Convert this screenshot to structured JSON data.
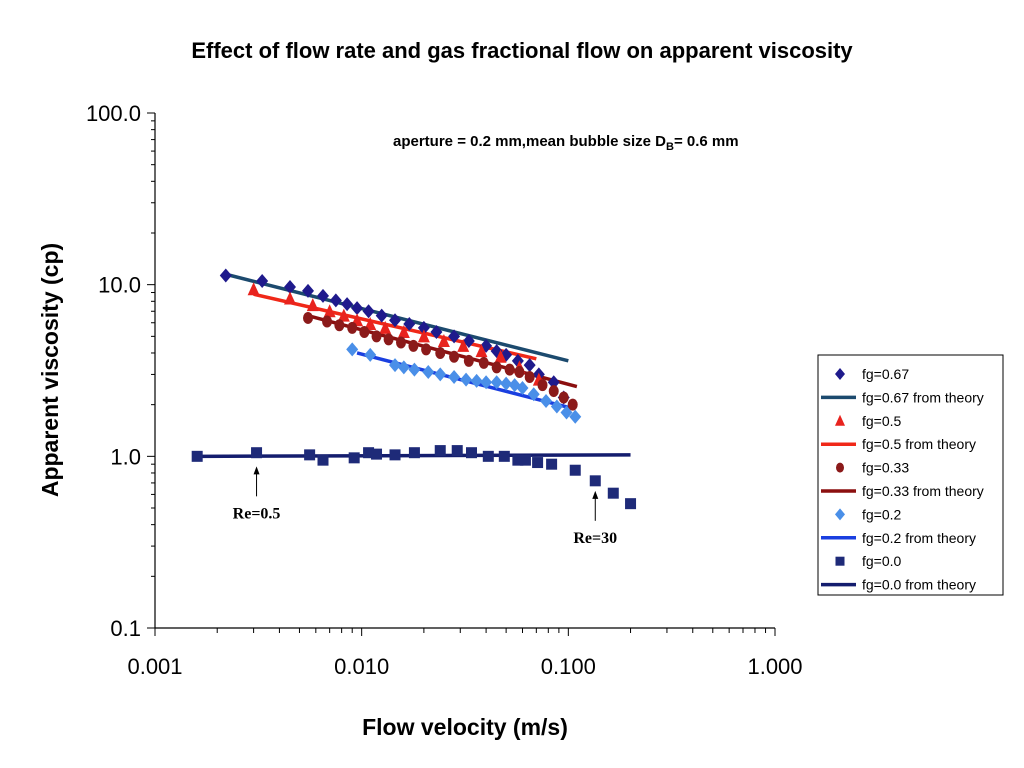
{
  "chart_data": {
    "type": "scatter",
    "title": "Effect of flow rate and gas fractional flow on apparent viscosity",
    "subtitle": {
      "main": "aperture = 0.2 mm,mean bubble size D",
      "sub": "B",
      "rest": "= 0.6 mm"
    },
    "xlabel": "Flow velocity (m/s)",
    "ylabel": "Apparent viscosity (cp)",
    "x_scale": "log",
    "y_scale": "log",
    "xlim": [
      0.001,
      1.0
    ],
    "ylim": [
      0.1,
      100.0
    ],
    "x_ticks": [
      {
        "v": 0.001,
        "label": "0.001"
      },
      {
        "v": 0.01,
        "label": "0.010"
      },
      {
        "v": 0.1,
        "label": "0.100"
      },
      {
        "v": 1.0,
        "label": "1.000"
      }
    ],
    "y_ticks": [
      {
        "v": 100,
        "label": "100.0"
      },
      {
        "v": 10,
        "label": "10.0"
      },
      {
        "v": 1,
        "label": "1.0"
      },
      {
        "v": 0.1,
        "label": "0.1"
      }
    ],
    "grid": false,
    "legend_position": "right",
    "series": [
      {
        "name": "fg=0.67",
        "kind": "marker",
        "marker": "diamond",
        "color": "#1f1a8c",
        "x": [
          0.0022,
          0.0033,
          0.0045,
          0.0055,
          0.0065,
          0.0075,
          0.0085,
          0.0095,
          0.0108,
          0.0125,
          0.0145,
          0.017,
          0.02,
          0.023,
          0.028,
          0.033,
          0.04,
          0.045,
          0.05,
          0.057,
          0.065,
          0.072,
          0.085,
          0.095
        ],
        "y": [
          11.3,
          10.5,
          9.7,
          9.2,
          8.6,
          8.1,
          7.7,
          7.3,
          7.0,
          6.6,
          6.2,
          5.9,
          5.6,
          5.3,
          5.0,
          4.7,
          4.4,
          4.1,
          3.9,
          3.6,
          3.4,
          3.0,
          2.7,
          2.2
        ]
      },
      {
        "name": "fg=0.67 from theory",
        "kind": "line",
        "color": "#1c4a6e",
        "x": [
          0.0022,
          0.1
        ],
        "y": [
          11.5,
          3.6
        ]
      },
      {
        "name": "fg=0.5",
        "kind": "marker",
        "marker": "triangle",
        "color": "#e8231e",
        "x": [
          0.003,
          0.0045,
          0.0058,
          0.007,
          0.0082,
          0.0095,
          0.011,
          0.013,
          0.016,
          0.02,
          0.025,
          0.031,
          0.038,
          0.047,
          0.058,
          0.072
        ],
        "y": [
          9.4,
          8.3,
          7.6,
          7.0,
          6.6,
          6.2,
          5.9,
          5.6,
          5.3,
          5.0,
          4.7,
          4.4,
          4.1,
          3.8,
          3.3,
          2.8
        ]
      },
      {
        "name": "fg=0.5 from theory",
        "kind": "line",
        "color": "#f02818",
        "x": [
          0.003,
          0.07
        ],
        "y": [
          8.8,
          3.7
        ]
      },
      {
        "name": "fg=0.33",
        "kind": "marker",
        "marker": "circle",
        "color": "#8b1a1a",
        "x": [
          0.0055,
          0.0068,
          0.0078,
          0.009,
          0.0103,
          0.0118,
          0.0135,
          0.0155,
          0.0178,
          0.0205,
          0.024,
          0.028,
          0.033,
          0.039,
          0.045,
          0.052,
          0.058,
          0.065,
          0.075,
          0.085,
          0.095,
          0.105
        ],
        "y": [
          6.4,
          6.1,
          5.8,
          5.6,
          5.3,
          5.0,
          4.8,
          4.6,
          4.4,
          4.2,
          4.0,
          3.8,
          3.6,
          3.5,
          3.3,
          3.2,
          3.1,
          2.9,
          2.6,
          2.4,
          2.2,
          2.0
        ]
      },
      {
        "name": "fg=0.33 from theory",
        "kind": "line",
        "color": "#8b0f0f",
        "x": [
          0.0055,
          0.11
        ],
        "y": [
          6.6,
          2.55
        ]
      },
      {
        "name": "fg=0.2",
        "kind": "marker",
        "marker": "diamond",
        "color": "#4a8fe8",
        "x": [
          0.009,
          0.011,
          0.0145,
          0.016,
          0.018,
          0.021,
          0.024,
          0.028,
          0.032,
          0.036,
          0.04,
          0.045,
          0.05,
          0.055,
          0.06,
          0.068,
          0.078,
          0.088,
          0.098,
          0.108
        ],
        "y": [
          4.2,
          3.9,
          3.4,
          3.3,
          3.2,
          3.1,
          3.0,
          2.9,
          2.8,
          2.75,
          2.7,
          2.7,
          2.65,
          2.6,
          2.5,
          2.3,
          2.1,
          1.95,
          1.8,
          1.7
        ]
      },
      {
        "name": "fg=0.2 from theory",
        "kind": "line",
        "color": "#1a3fe0",
        "x": [
          0.0095,
          0.105
        ],
        "y": [
          4.0,
          1.9
        ]
      },
      {
        "name": "fg=0.0",
        "kind": "marker",
        "marker": "square",
        "color": "#1e2a78",
        "x": [
          0.0016,
          0.0031,
          0.0056,
          0.0065,
          0.0092,
          0.0108,
          0.0118,
          0.0145,
          0.018,
          0.024,
          0.029,
          0.034,
          0.041,
          0.049,
          0.057,
          0.062,
          0.071,
          0.083,
          0.108,
          0.135,
          0.165,
          0.2
        ],
        "y": [
          1.0,
          1.05,
          1.02,
          0.95,
          0.98,
          1.05,
          1.03,
          1.02,
          1.05,
          1.08,
          1.08,
          1.05,
          1.0,
          1.0,
          0.95,
          0.95,
          0.92,
          0.9,
          0.83,
          0.72,
          0.61,
          0.53
        ]
      },
      {
        "name": "fg=0.0 from theory",
        "kind": "line",
        "color": "#141d6e",
        "x": [
          0.0016,
          0.2
        ],
        "y": [
          1.0,
          1.02
        ]
      }
    ],
    "annotations": [
      {
        "text": "Re=0.5",
        "x": 0.0031,
        "y": 1.0
      },
      {
        "text": "Re=30",
        "x": 0.135,
        "y": 0.72
      }
    ]
  }
}
